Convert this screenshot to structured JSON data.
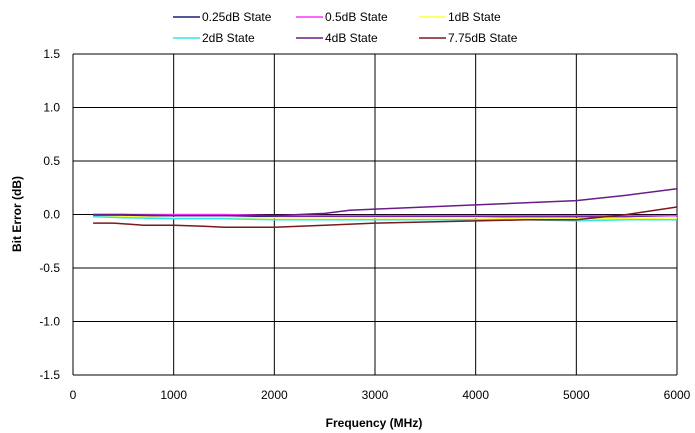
{
  "chart_data": {
    "type": "line",
    "title": "",
    "xlabel": "Frequency (MHz)",
    "ylabel": "Bit Error (dB)",
    "xlim": [
      0,
      6000
    ],
    "ylim": [
      -1.5,
      1.5
    ],
    "x_ticks": [
      0,
      1000,
      2000,
      3000,
      4000,
      5000,
      6000
    ],
    "x_tick_labels": [
      "0",
      "1000",
      "2000",
      "3000",
      "4000",
      "5000",
      "6000"
    ],
    "y_ticks": [
      -1.5,
      -1.0,
      -0.5,
      0.0,
      0.5,
      1.0,
      1.5
    ],
    "y_tick_labels": [
      "-1.5",
      "-1.0",
      "-0.5",
      "0.0",
      "0.5",
      "1.0",
      "1.5"
    ],
    "grid": true,
    "legend_position": "top",
    "series": [
      {
        "name": "0.25dB State",
        "color": "#1f1f7a",
        "x": [
          200,
          500,
          1000,
          1500,
          2000,
          2500,
          3000,
          3500,
          4000,
          4500,
          5000,
          5500,
          6000
        ],
        "y": [
          -0.01,
          -0.01,
          -0.01,
          -0.01,
          -0.02,
          -0.02,
          -0.02,
          -0.02,
          -0.02,
          -0.02,
          -0.02,
          -0.02,
          -0.01
        ]
      },
      {
        "name": "0.5dB State",
        "color": "#ff33ff",
        "x": [
          200,
          500,
          1000,
          1500,
          2000,
          2500,
          3000,
          3500,
          4000,
          4500,
          5000,
          5500,
          6000
        ],
        "y": [
          0.0,
          0.0,
          0.0,
          0.0,
          -0.01,
          -0.01,
          -0.01,
          -0.01,
          -0.01,
          -0.01,
          -0.01,
          -0.01,
          -0.01
        ]
      },
      {
        "name": "1dB State",
        "color": "#ffff33",
        "x": [
          200,
          500,
          1000,
          1500,
          2000,
          2500,
          3000,
          3500,
          4000,
          4500,
          5000,
          5500,
          6000
        ],
        "y": [
          -0.02,
          -0.02,
          -0.03,
          -0.03,
          -0.03,
          -0.03,
          -0.03,
          -0.03,
          -0.03,
          -0.04,
          -0.04,
          -0.04,
          -0.03
        ]
      },
      {
        "name": "2dB State",
        "color": "#33e6e6",
        "x": [
          200,
          500,
          1000,
          1500,
          2000,
          2500,
          3000,
          3500,
          4000,
          4500,
          5000,
          5500,
          6000
        ],
        "y": [
          -0.02,
          -0.03,
          -0.04,
          -0.04,
          -0.05,
          -0.05,
          -0.05,
          -0.05,
          -0.05,
          -0.05,
          -0.06,
          -0.05,
          -0.05
        ]
      },
      {
        "name": "4dB State",
        "color": "#6a1b8c",
        "x": [
          200,
          500,
          1000,
          1500,
          2000,
          2500,
          2750,
          3000,
          3500,
          4000,
          4500,
          5000,
          5500,
          6000
        ],
        "y": [
          0.0,
          0.0,
          -0.01,
          -0.01,
          -0.01,
          0.01,
          0.04,
          0.05,
          0.07,
          0.09,
          0.11,
          0.13,
          0.18,
          0.24
        ]
      },
      {
        "name": "7.75dB State",
        "color": "#7a1a1a",
        "x": [
          200,
          400,
          700,
          1000,
          1300,
          1500,
          1800,
          2000,
          2500,
          3000,
          3500,
          4000,
          4500,
          5000,
          5500,
          6000
        ],
        "y": [
          -0.08,
          -0.08,
          -0.1,
          -0.1,
          -0.11,
          -0.12,
          -0.12,
          -0.12,
          -0.1,
          -0.08,
          -0.07,
          -0.06,
          -0.05,
          -0.05,
          0.0,
          0.07
        ]
      }
    ]
  }
}
